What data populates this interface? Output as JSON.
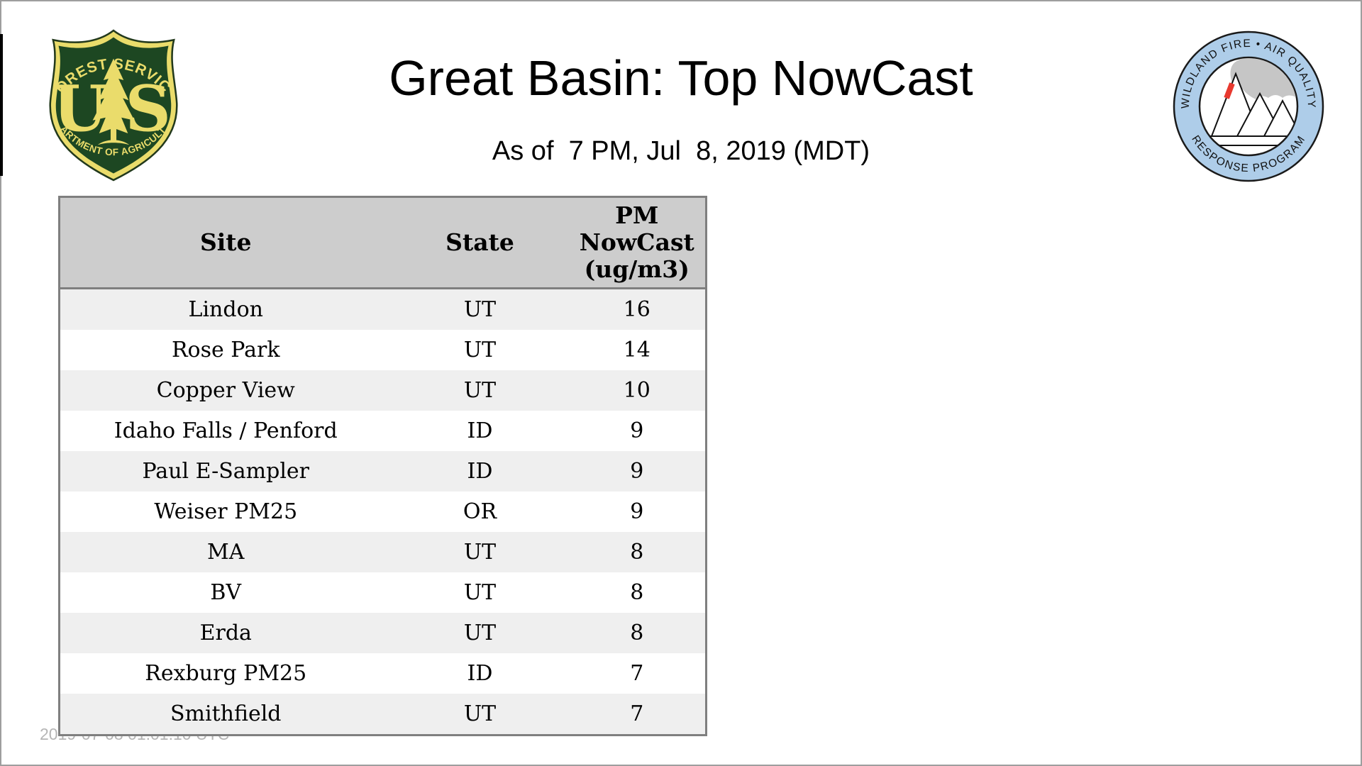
{
  "slide": {
    "title": "Great Basin: Top NowCast",
    "subtitle": "As of  7 PM, Jul  8, 2019 (MDT)",
    "footer_timestamp": "2019-07-08 01:01:10 UTC"
  },
  "logos": {
    "usfs_shield": {
      "label": "US Forest Service shield",
      "arc_top": "FOREST SERVICE",
      "letter_left": "U",
      "letter_right": "S",
      "arc_bottom": "DEPARTMENT OF AGRICULTURE",
      "gold": "#EADC6B",
      "green": "#1D4722"
    },
    "wfaqrp_badge": {
      "label": "Wildland Fire Air Quality Response Program badge",
      "arc_top": "WILDLAND FIRE • AIR QUALITY",
      "arc_bottom": "RESPONSE PROGRAM",
      "ring_blue": "#AECDE9",
      "smoke_gray": "#C6C6C6",
      "flame_red": "#E8392F"
    }
  },
  "table": {
    "columns": {
      "site": "Site",
      "state": "State",
      "pm_line1": "PM",
      "pm_line2": "NowCast",
      "pm_line3": "(ug/m3)"
    },
    "rows": [
      {
        "site": "Lindon",
        "state": "UT",
        "value": "16"
      },
      {
        "site": "Rose Park",
        "state": "UT",
        "value": "14"
      },
      {
        "site": "Copper View",
        "state": "UT",
        "value": "10"
      },
      {
        "site": "Idaho Falls / Penford",
        "state": "ID",
        "value": "9"
      },
      {
        "site": "Paul E-Sampler",
        "state": "ID",
        "value": "9"
      },
      {
        "site": "Weiser PM25",
        "state": "OR",
        "value": "9"
      },
      {
        "site": "MA",
        "state": "UT",
        "value": "8"
      },
      {
        "site": "BV",
        "state": "UT",
        "value": "8"
      },
      {
        "site": "Erda",
        "state": "UT",
        "value": "8"
      },
      {
        "site": "Rexburg PM25",
        "state": "ID",
        "value": "7"
      },
      {
        "site": "Smithfield",
        "state": "UT",
        "value": "7"
      }
    ],
    "colors": {
      "header_bg": "#CDCDCD",
      "stripe_bg": "#EFEFEF",
      "border_gray": "#7F7F7F"
    }
  }
}
